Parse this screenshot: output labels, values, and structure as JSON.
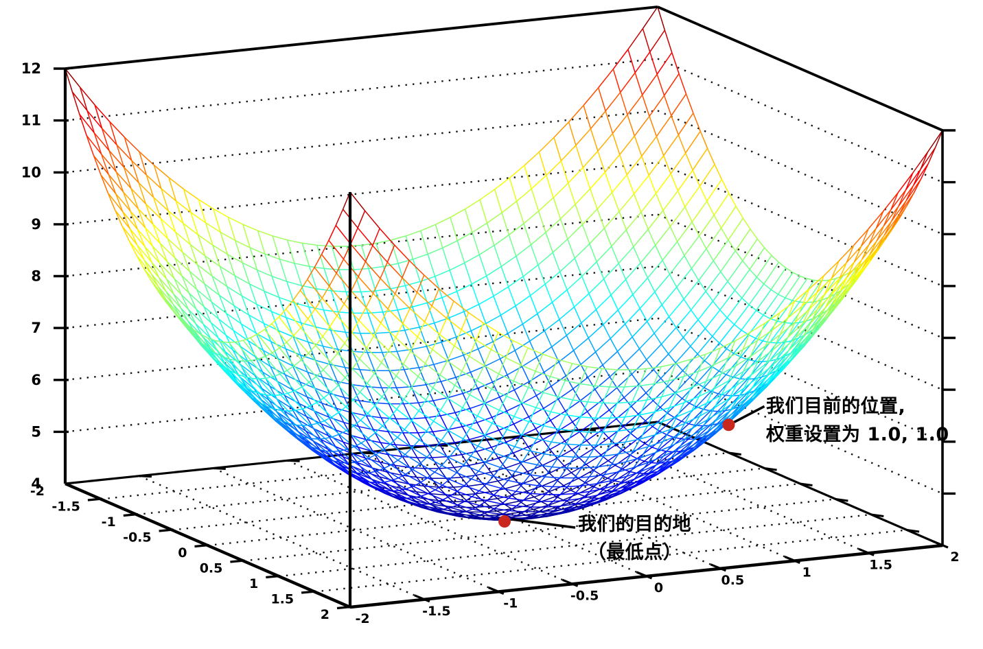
{
  "chart_data": {
    "type": "surface",
    "title": "",
    "z_function": "x*x + y*y + 4",
    "x_range": [
      -2,
      2
    ],
    "y_range": [
      -2,
      2
    ],
    "z_range": [
      4,
      12
    ],
    "mesh_step": 0.1,
    "colormap": "jet",
    "grid_style": "dotted",
    "legend": "none",
    "x_ticks": [
      -2,
      -1.5,
      -1,
      -0.5,
      0,
      0.5,
      1,
      1.5,
      2
    ],
    "x_tick_labels": [
      "-2",
      "-1.5",
      "-1",
      "-0.5",
      "0",
      "0.5",
      "1",
      "1.5",
      "2"
    ],
    "y_ticks": [
      -2,
      -1.5,
      -1,
      -0.5,
      0,
      0.5,
      1,
      1.5,
      2
    ],
    "y_tick_labels": [
      "-2",
      "-1.5",
      "-1",
      "-0.5",
      "0",
      "0.5",
      "1",
      "1.5",
      "2"
    ],
    "z_ticks": [
      4,
      5,
      6,
      7,
      8,
      9,
      10,
      11,
      12
    ],
    "z_tick_labels": [
      "4",
      "5",
      "6",
      "7",
      "8",
      "9",
      "10",
      "11",
      "12"
    ],
    "annotations": [
      {
        "id": "current-position",
        "point": {
          "x": 1.0,
          "y": 1.0,
          "z": 6.0
        },
        "lines": [
          "我们目前的位置,",
          "权重设置为 1.0, 1.0"
        ],
        "marker_color": "#c8281e"
      },
      {
        "id": "destination",
        "point": {
          "x": 0.0,
          "y": 0.0,
          "z": 4.0
        },
        "lines": [
          "我们的目的地",
          "（最低点）"
        ],
        "marker_color": "#c8281e"
      }
    ]
  },
  "colors": {
    "background": "#ffffff",
    "axis": "#000000",
    "grid_dots": "#151515",
    "annotation_text": "#000000"
  }
}
